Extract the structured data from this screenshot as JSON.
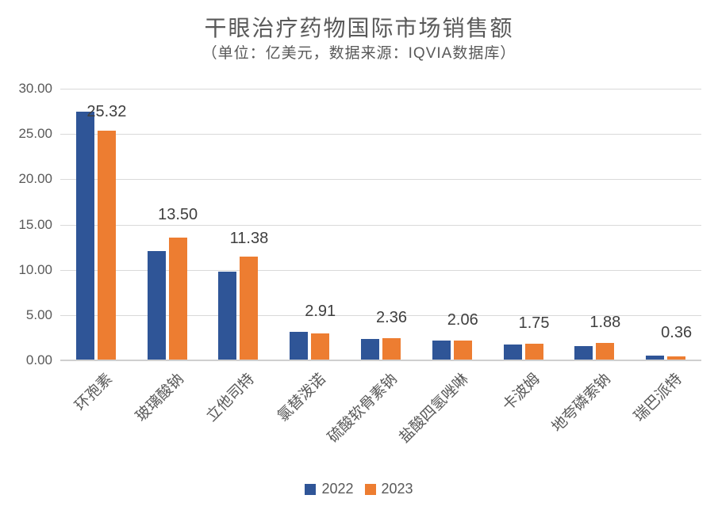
{
  "chart_data": {
    "type": "bar",
    "title": "干眼治疗药物国际市场销售额",
    "subtitle": "（单位：亿美元，数据来源：IQVIA数据库）",
    "categories": [
      "环孢素",
      "玻璃酸钠",
      "立他司特",
      "氯替泼诺",
      "硫酸软骨素钠",
      "盐酸四氢唑啉",
      "卡波姆",
      "地夸磷索钠",
      "瑞巴派特"
    ],
    "series": [
      {
        "name": "2022",
        "color": "#2f5597",
        "values": [
          27.4,
          11.95,
          9.7,
          3.1,
          2.28,
          2.1,
          1.65,
          1.5,
          0.42
        ]
      },
      {
        "name": "2023",
        "color": "#ed7d31",
        "values": [
          25.32,
          13.5,
          11.38,
          2.91,
          2.36,
          2.06,
          1.75,
          1.88,
          0.36
        ],
        "data_labels": [
          "25.32",
          "13.50",
          "11.38",
          "2.91",
          "2.36",
          "2.06",
          "1.75",
          "1.88",
          "0.36"
        ]
      }
    ],
    "y_axis": {
      "min": 0,
      "max": 30,
      "step": 5,
      "tick_labels": [
        "0.00",
        "5.00",
        "10.00",
        "15.00",
        "20.00",
        "25.00",
        "30.00"
      ]
    },
    "grid": true,
    "legend_position": "bottom",
    "colors": {
      "gridline": "#d9d9d9",
      "axis_line": "#cfcfcf",
      "text_gray": "#595959",
      "data_label": "#3f3f3f"
    }
  }
}
